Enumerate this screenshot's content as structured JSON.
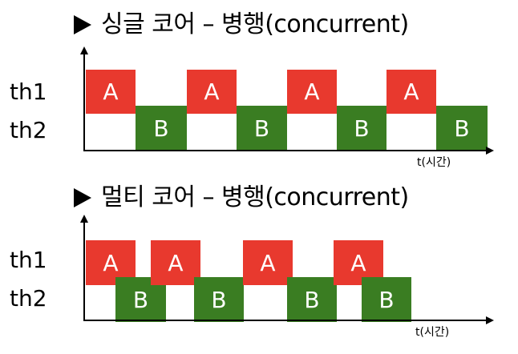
{
  "single_core": {
    "heading": "싱글 코어 – 병행(concurrent)",
    "th1_label": "th1",
    "th2_label": "th2",
    "a_label": "A",
    "b_label": "B",
    "time_label": "t(시간)"
  },
  "multi_core": {
    "heading": "멀티 코어 – 병행(concurrent)",
    "th1_label": "th1",
    "th2_label": "th2",
    "a_label": "A",
    "b_label": "B",
    "time_label": "t(시간)"
  },
  "colors": {
    "thread_a": "#e8392e",
    "thread_b": "#3a7d22"
  },
  "icons": {
    "heading_bullet": "play-triangle-icon"
  }
}
